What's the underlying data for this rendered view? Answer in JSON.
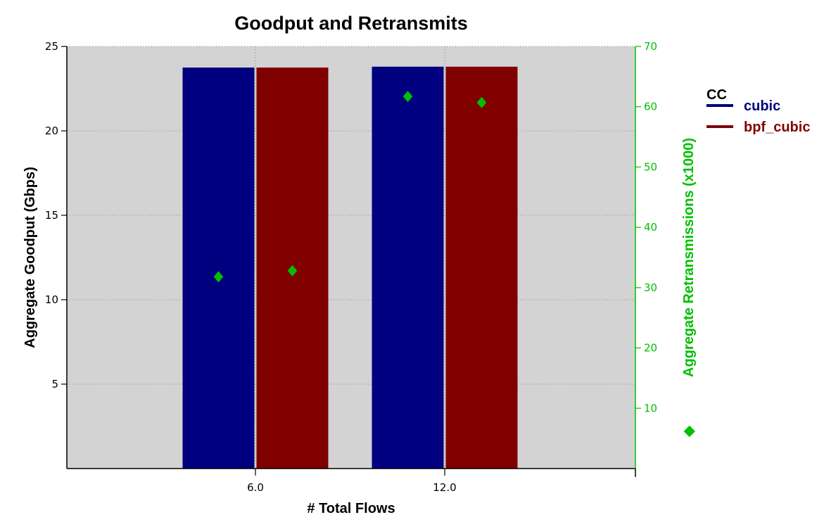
{
  "chart_data": {
    "type": "bar",
    "title": "Goodput and Retransmits",
    "xlabel": "# Total Flows",
    "ylabel": "Aggregate Goodput (Gbps)",
    "y2label": "Aggregate Retransmissions (x1000)",
    "y2label_marker": "◆",
    "categories": [
      "6.0",
      "12.0"
    ],
    "ylim": [
      0,
      25
    ],
    "y2lim": [
      0,
      70
    ],
    "yticks": [
      5,
      10,
      15,
      20,
      25
    ],
    "y2ticks": [
      10,
      20,
      30,
      40,
      50,
      60,
      70
    ],
    "grid": true,
    "legend_position": "right",
    "legend_title": "CC",
    "series": [
      {
        "name": "cubic",
        "color": "#000080",
        "values": [
          23.75,
          23.8
        ]
      },
      {
        "name": "bpf_cubic",
        "color": "#800000",
        "values": [
          23.75,
          23.8
        ]
      }
    ],
    "retransmits": {
      "color": "#00c000",
      "marker": "diamond",
      "values": [
        [
          31.8,
          32.8
        ],
        [
          61.7,
          60.7
        ]
      ]
    },
    "colors": {
      "plot_background": "#d3d3d3",
      "grid": "#8a8a8a",
      "secondary_axis": "#00c000"
    }
  }
}
